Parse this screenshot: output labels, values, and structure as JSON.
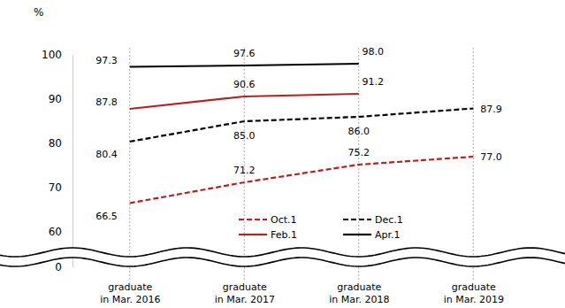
{
  "chart_data": {
    "type": "line",
    "y_label": "%",
    "categories": [
      "graduate\nin Mar. 2016",
      "graduate\nin Mar. 2017",
      "graduate\nin Mar. 2018",
      "graduate\nin Mar. 2019"
    ],
    "series": [
      {
        "name": "Oct.1",
        "color": "#b22222",
        "line_style": "dashed",
        "values": [
          66.5,
          71.2,
          75.2,
          77.0
        ],
        "value_labels": [
          "66.5",
          "71.2",
          "75.2",
          "77.0"
        ]
      },
      {
        "name": "Dec.1",
        "color": "#000000",
        "line_style": "dashed",
        "values": [
          80.4,
          85.0,
          86.0,
          87.9
        ],
        "value_labels": [
          "80.4",
          "85.0",
          "86.0",
          "87.9"
        ]
      },
      {
        "name": "Feb.1",
        "color": "#b22222",
        "line_style": "solid",
        "values": [
          87.8,
          90.6,
          91.2,
          null
        ],
        "value_labels": [
          "87.8",
          "90.6",
          "91.2",
          null
        ]
      },
      {
        "name": "Apr.1",
        "color": "#000000",
        "line_style": "solid",
        "values": [
          97.3,
          97.6,
          98.0,
          null
        ],
        "value_labels": [
          "97.3",
          "97.6",
          "98.0",
          null
        ]
      }
    ],
    "ylim": [
      0,
      100
    ],
    "yticks": [
      0,
      60,
      70,
      80,
      90,
      100
    ],
    "grid": "x",
    "legend": "bottom",
    "data_labels": true,
    "tick_labels": true
  }
}
